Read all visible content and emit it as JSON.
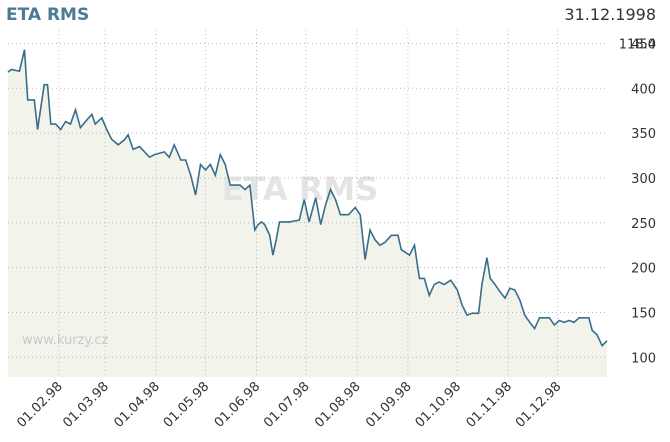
{
  "chart_data": {
    "type": "line",
    "title": "ETA RMS",
    "date": "31.12.1998",
    "last_value": "118.4",
    "watermark": "ETA RMS",
    "source": "www.kurzy.cz",
    "series": [
      {
        "name": "ETA RMS",
        "color": "#3a6d8c",
        "x": [
          1,
          3,
          8,
          11,
          13,
          17,
          19,
          23,
          25,
          27,
          30,
          33,
          36,
          39,
          42,
          45,
          50,
          52,
          54,
          58,
          61,
          64,
          68,
          72,
          74,
          77,
          81,
          84,
          87,
          90,
          96,
          99,
          102,
          106,
          109,
          112,
          115,
          118,
          121,
          124,
          127,
          130,
          133,
          136,
          142,
          145,
          148,
          151,
          153,
          155,
          157,
          160,
          162,
          164,
          166,
          172,
          178,
          181,
          184,
          188,
          191,
          194,
          197,
          200,
          203,
          208,
          212,
          215,
          218,
          221,
          224,
          227,
          230,
          234,
          238,
          240,
          245,
          248,
          251,
          254,
          257,
          260,
          263,
          266,
          270,
          274,
          277,
          280,
          283,
          287,
          289,
          292,
          294,
          297,
          300,
          303,
          306,
          309,
          312,
          315,
          318,
          321,
          324,
          330,
          333,
          336,
          339,
          342,
          345,
          348,
          354,
          356,
          359,
          362,
          365
        ],
        "values": [
          418,
          421,
          419,
          443,
          387,
          387,
          354,
          404,
          404,
          360,
          360,
          354,
          363,
          360,
          376,
          356,
          367,
          371,
          360,
          367,
          354,
          343,
          337,
          343,
          348,
          332,
          335,
          329,
          323,
          326,
          329,
          323,
          337,
          320,
          320,
          303,
          281,
          315,
          309,
          315,
          303,
          326,
          315,
          292,
          292,
          287,
          292,
          242,
          248,
          251,
          248,
          236,
          214,
          231,
          251,
          251,
          253,
          276,
          251,
          278,
          248,
          270,
          287,
          276,
          259,
          259,
          267,
          259,
          209,
          242,
          231,
          225,
          228,
          236,
          236,
          220,
          214,
          225,
          188,
          188,
          169,
          181,
          184,
          181,
          186,
          175,
          158,
          147,
          149,
          149,
          181,
          211,
          188,
          181,
          173,
          166,
          177,
          175,
          164,
          147,
          139,
          132,
          144,
          144,
          136,
          141,
          139,
          141,
          139,
          144,
          144,
          130,
          125,
          113,
          118.4
        ]
      }
    ],
    "xlim": [
      1,
      365
    ],
    "ylim": [
      78,
      465
    ],
    "xticks": [
      {
        "value": 32,
        "label": "01.02.98"
      },
      {
        "value": 60,
        "label": "01.03.98"
      },
      {
        "value": 91,
        "label": "01.04.98"
      },
      {
        "value": 121,
        "label": "01.05.98"
      },
      {
        "value": 152,
        "label": "01.06.98"
      },
      {
        "value": 182,
        "label": "01.07.98"
      },
      {
        "value": 213,
        "label": "01.08.98"
      },
      {
        "value": 244,
        "label": "01.09.98"
      },
      {
        "value": 274,
        "label": "01.10.98"
      },
      {
        "value": 305,
        "label": "01.11.98"
      },
      {
        "value": 335,
        "label": "01.12.98"
      }
    ],
    "yticks": [
      100,
      150,
      200,
      250,
      300,
      350,
      400,
      450
    ],
    "grid": true
  }
}
